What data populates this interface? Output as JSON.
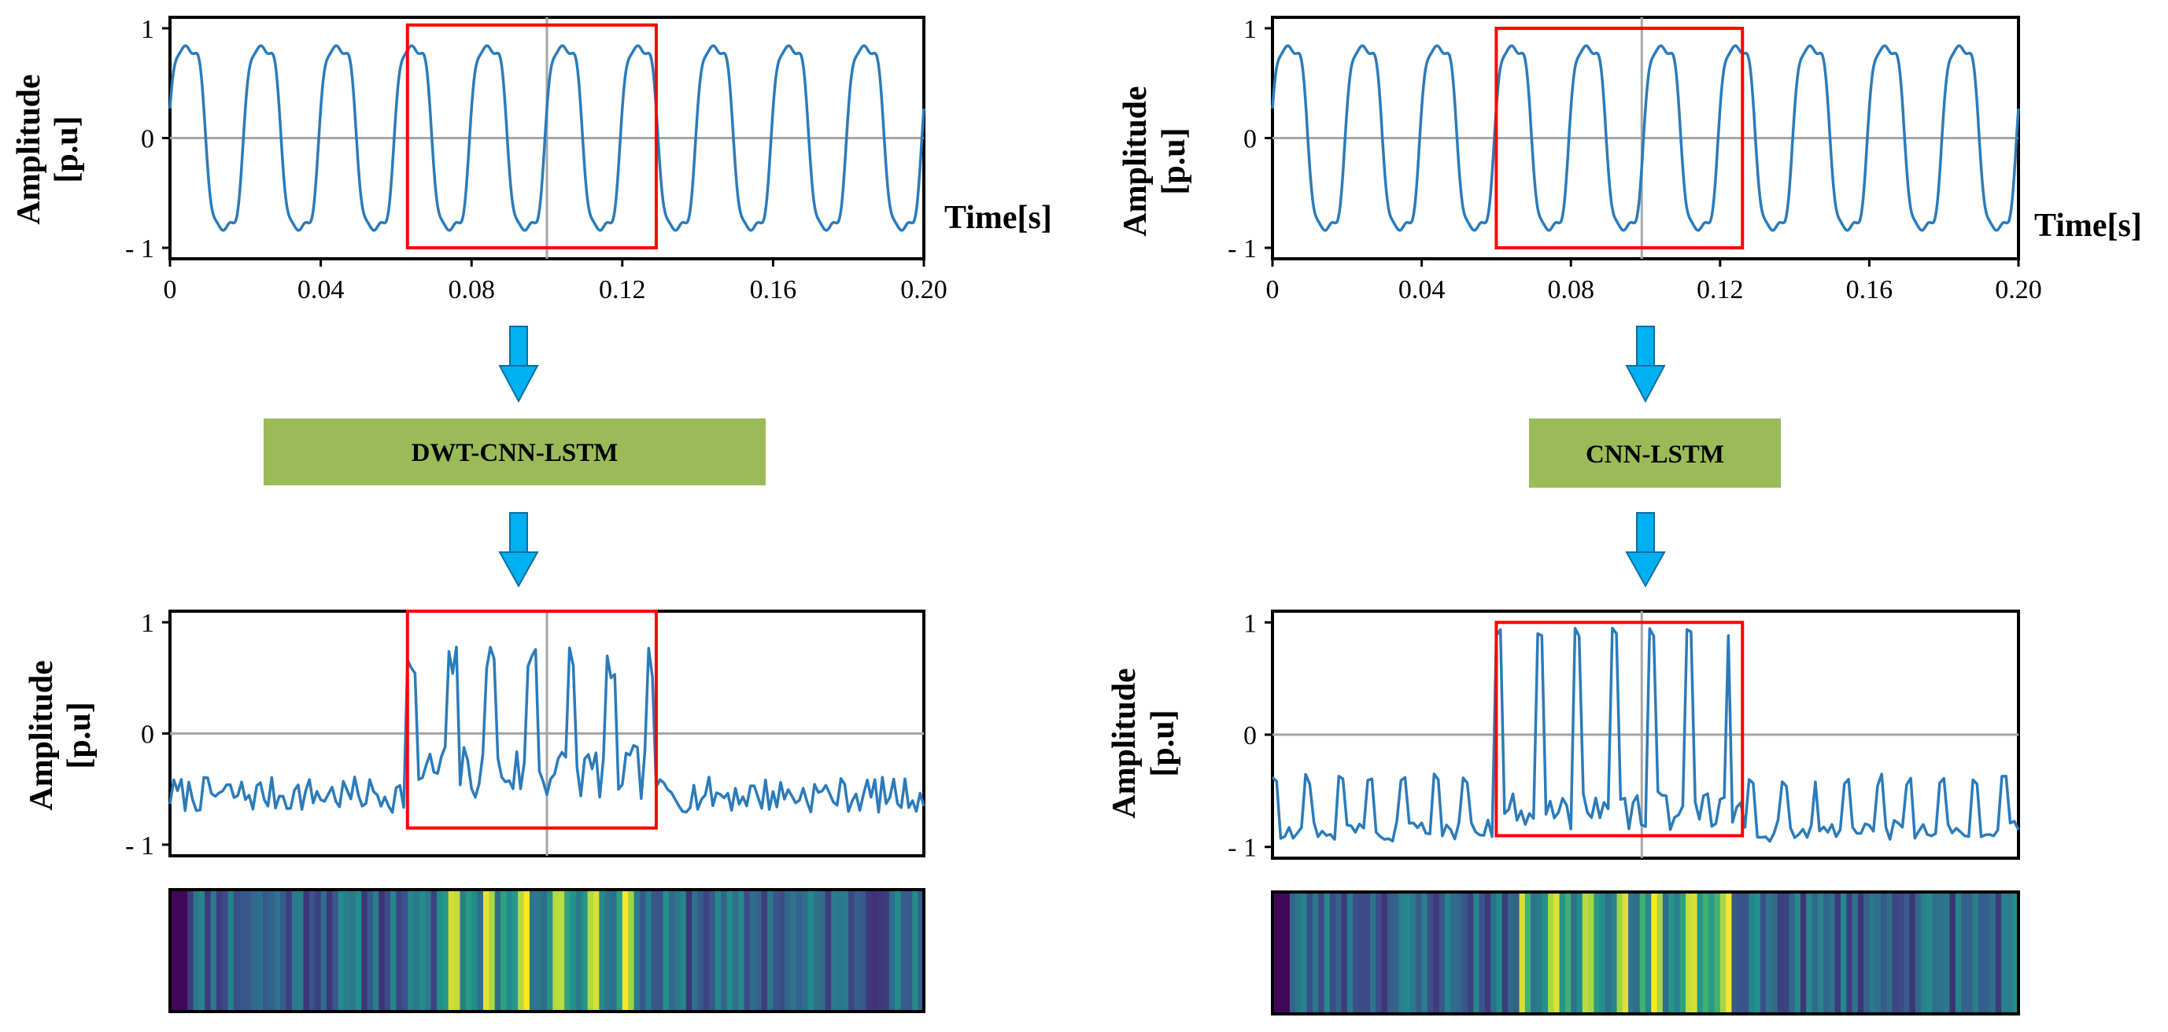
{
  "colors": {
    "line": "#2b7bba",
    "highlight": "#ff0000",
    "axis_zero": "#a6a6a6",
    "model_box": "#9bbb59",
    "arrow": "#00b0f0"
  },
  "x_axis_label": "Time[s]",
  "y_axis_label_line1": "Amplitude",
  "y_axis_label_line2": "[p.u]",
  "models": {
    "left": "DWT-CNN-LSTM",
    "right": "CNN-LSTM"
  },
  "chart_data": [
    {
      "id": "left-input",
      "type": "line",
      "title": "",
      "xlabel": "Time[s]",
      "ylabel": "Amplitude [p.u]",
      "xlim": [
        0,
        0.2
      ],
      "ylim": [
        -1.1,
        1.1
      ],
      "x_ticks": [
        0,
        0.04,
        0.08,
        0.12,
        0.16,
        0.2
      ],
      "x_tick_labels": [
        "0",
        "0.04",
        "0.08",
        "0.12",
        "0.16",
        "0.20"
      ],
      "y_ticks": [
        1,
        0,
        -1
      ],
      "y_tick_labels": [
        "1",
        "0",
        "- 1"
      ],
      "signal": {
        "kind": "periodic",
        "freq": 50,
        "base_amp": 0.8,
        "sag_amp": 1.0,
        "h3": 0.18,
        "h5": 0.06,
        "phase": 0.15
      },
      "highlight": {
        "x0": 0.063,
        "x1": 0.129,
        "y0": -1.0,
        "y1": 1.03
      },
      "vline_x": 0.1
    },
    {
      "id": "right-input",
      "type": "line",
      "title": "",
      "xlabel": "Time[s]",
      "ylabel": "Amplitude [p.u]",
      "xlim": [
        0,
        0.2
      ],
      "ylim": [
        -1.1,
        1.1
      ],
      "x_ticks": [
        0,
        0.04,
        0.08,
        0.12,
        0.16,
        0.2
      ],
      "x_tick_labels": [
        "0",
        "0.04",
        "0.08",
        "0.12",
        "0.16",
        "0.20"
      ],
      "y_ticks": [
        1,
        0,
        -1
      ],
      "y_tick_labels": [
        "1",
        "0",
        "- 1"
      ],
      "signal": {
        "kind": "periodic",
        "freq": 50,
        "base_amp": 0.78,
        "sag_amp": 0.99,
        "h3": 0.18,
        "h5": 0.06,
        "phase": 0.15
      },
      "highlight": {
        "x0": 0.06,
        "x1": 0.126,
        "y0": -1.0,
        "y1": 1.0
      },
      "vline_x": 0.099
    },
    {
      "id": "left-output",
      "type": "line",
      "title": "",
      "xlabel": "",
      "ylabel": "Amplitude [p.u]",
      "xlim": [
        0,
        0.2
      ],
      "ylim": [
        -1.1,
        1.1
      ],
      "y_ticks": [
        1,
        0,
        -1
      ],
      "y_tick_labels": [
        "1",
        "0",
        "- 1"
      ],
      "signal": {
        "kind": "noisy",
        "seed": 7,
        "points": 200,
        "baseline": -0.55,
        "noise": 0.16,
        "peak_hi": 0.85,
        "peak_lo": -0.6,
        "peak_period": 0.0105,
        "event_x0": 0.063,
        "event_x1": 0.129
      },
      "highlight": {
        "x0": 0.063,
        "x1": 0.129,
        "y0": -0.85,
        "y1": 1.1
      },
      "vline_x": 0.1
    },
    {
      "id": "right-output",
      "type": "line",
      "title": "",
      "xlabel": "",
      "ylabel": "Amplitude [p.u]",
      "xlim": [
        0,
        0.2
      ],
      "ylim": [
        -1.1,
        1.1
      ],
      "y_ticks": [
        1,
        0,
        -1
      ],
      "y_tick_labels": [
        "1",
        "0",
        "- 1"
      ],
      "signal": {
        "kind": "spiky",
        "seed": 3,
        "points": 180,
        "baseline": -0.75,
        "noise": 0.1,
        "peak_hi": 0.95,
        "peak_lo": -0.85,
        "peak_period": 0.0102,
        "base_period": 0.0085,
        "base_peak": -0.35,
        "event_x0": 0.06,
        "event_x1": 0.126
      },
      "highlight": {
        "x0": 0.06,
        "x1": 0.126,
        "y0": -0.9,
        "y1": 1.0
      },
      "vline_x": 0.099
    },
    {
      "id": "left-heatmap",
      "type": "heatmap",
      "colormap": "viridis",
      "seed": 11,
      "columns": 130,
      "event_col0": 46,
      "event_col1": 80
    },
    {
      "id": "right-heatmap",
      "type": "heatmap",
      "colormap": "viridis",
      "seed": 23,
      "columns": 130,
      "event_col0": 43,
      "event_col1": 79
    }
  ]
}
